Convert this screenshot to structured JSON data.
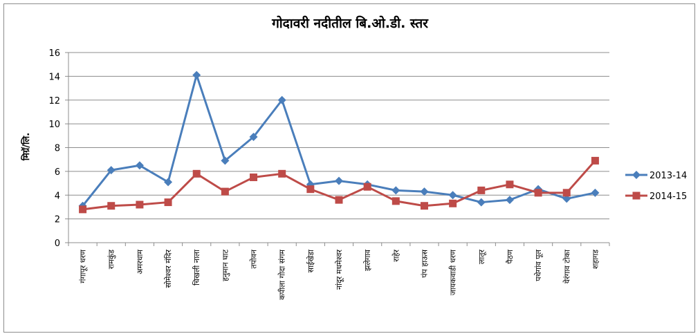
{
  "chart_data": {
    "type": "line",
    "title": "गोदावरी नदीतील बि.ओ.डी. स्तर",
    "xlabel": "",
    "ylabel": "मिग्रॅ/लि.",
    "ylim": [
      0,
      16
    ],
    "yticks": [
      0,
      2,
      4,
      6,
      8,
      10,
      12,
      14,
      16
    ],
    "grid": true,
    "legend_position": "right",
    "categories": [
      "गंगापूर धरण",
      "रामकुंड",
      "अमरधाम",
      "सोमेश्वर मंदिर",
      "चिखली नाला",
      "हनुमान घाट",
      "तपोवन",
      "कपीला गोदा संगम",
      "साईखेडा",
      "नांदूर मधमेश्वर",
      "झलेगाव",
      "राहेर",
      "पंप हाऊस",
      "जायकवाडी धरण",
      "लातूर",
      "पैठण",
      "पथेगांव पूल",
      "येरंगाव टोका",
      "शहागड"
    ],
    "series": [
      {
        "name": "2013-14",
        "color": "#4a7ebb",
        "marker": "diamond",
        "values": [
          3.1,
          6.1,
          6.5,
          5.1,
          14.1,
          6.9,
          8.9,
          12.0,
          4.9,
          5.2,
          4.9,
          4.4,
          4.3,
          4.0,
          3.4,
          3.6,
          4.5,
          3.7,
          4.2
        ]
      },
      {
        "name": "2014-15",
        "color": "#be4b48",
        "marker": "square",
        "values": [
          2.8,
          3.1,
          3.2,
          3.4,
          5.8,
          4.3,
          5.5,
          5.8,
          4.5,
          3.6,
          4.7,
          3.5,
          3.1,
          3.3,
          4.4,
          4.9,
          4.2,
          4.2,
          6.9
        ]
      }
    ]
  }
}
